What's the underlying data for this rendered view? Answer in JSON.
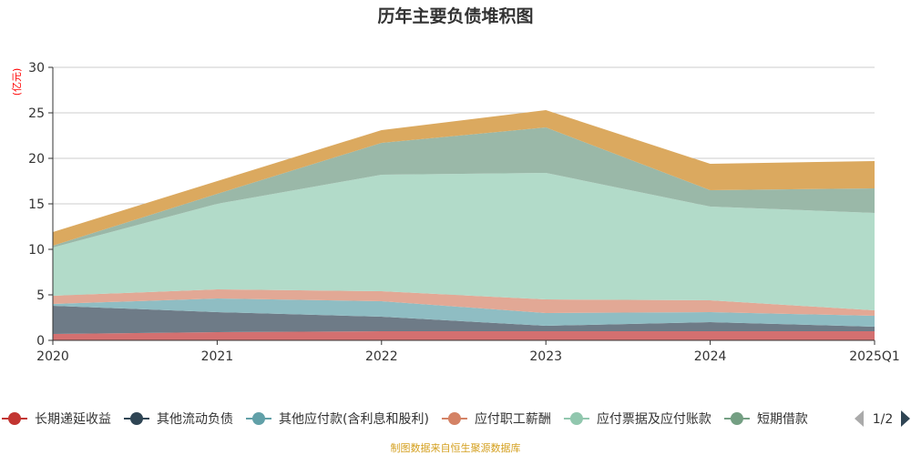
{
  "chart_data": {
    "type": "area",
    "stacked": true,
    "title": "历年主要负债堆积图",
    "ylabel": "(亿元)",
    "xlabel": "",
    "categories": [
      "2020",
      "2021",
      "2022",
      "2023",
      "2024",
      "2025Q1"
    ],
    "ylim": [
      0,
      30
    ],
    "yticks": [
      0,
      5,
      10,
      15,
      20,
      25,
      30
    ],
    "grid": true,
    "legend_placement": "bottom",
    "legend_page": "1/2",
    "series": [
      {
        "name": "长期递延收益",
        "color": "#c23531",
        "fill": "#d47070",
        "values": [
          0.7,
          0.9,
          1.0,
          1.0,
          1.0,
          1.0
        ]
      },
      {
        "name": "其他流动负债",
        "color": "#2f4554",
        "fill": "#6e7b87",
        "values": [
          3.1,
          2.2,
          1.6,
          0.6,
          1.0,
          0.5
        ]
      },
      {
        "name": "其他应付款(含利息和股利)",
        "color": "#61a0a8",
        "fill": "#8fbdc3",
        "values": [
          0.2,
          1.5,
          1.7,
          1.4,
          1.1,
          1.2
        ]
      },
      {
        "name": "应付职工薪酬",
        "color": "#d48265",
        "fill": "#e2a895",
        "values": [
          0.9,
          1.0,
          1.1,
          1.5,
          1.3,
          0.6
        ]
      },
      {
        "name": "应付票据及应付账款",
        "color": "#91c7ae",
        "fill": "#b2dbc9",
        "values": [
          5.3,
          9.4,
          12.8,
          13.9,
          10.3,
          10.7
        ]
      },
      {
        "name": "短期借款",
        "color": "#749f83",
        "fill": "#9ab8a8",
        "values": [
          0.2,
          1.1,
          3.5,
          5.0,
          1.8,
          2.7
        ]
      },
      {
        "color": "#ca8622",
        "fill": "#dba95f",
        "values": [
          1.5,
          1.4,
          1.4,
          1.9,
          2.9,
          3.0
        ]
      }
    ]
  },
  "legend_display_names": [
    "长期递延收益",
    "其他流动负债",
    "其他应付款(含利息和股利)",
    "应付职工薪酬",
    "应付票据及应付账款",
    "短期借款"
  ],
  "footer": "制图数据来自恒生聚源数据库"
}
